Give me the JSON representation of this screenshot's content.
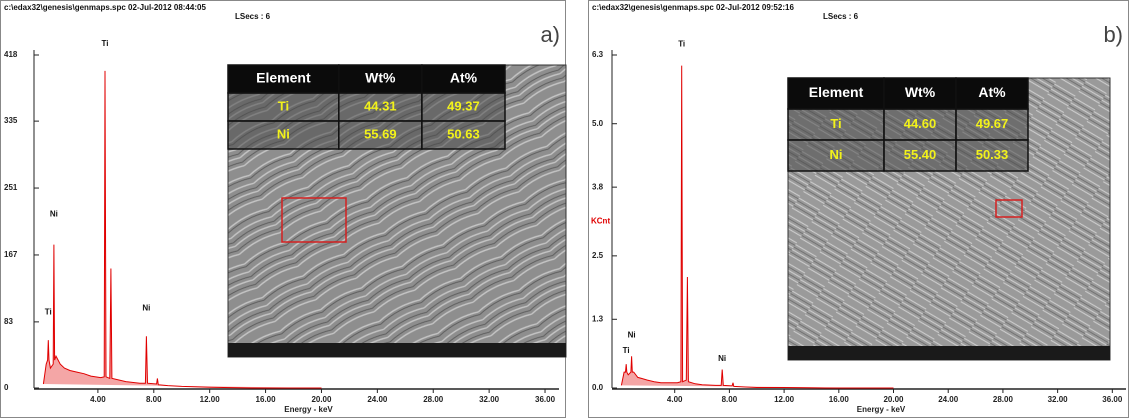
{
  "chart_data": [
    {
      "type": "line",
      "header": "c:\\edax32\\genesis\\genmaps.spc  02-Jul-2012 08:44:05",
      "subheader": "LSecs : 6",
      "panel_label": "a)",
      "xlabel": "Energy - keV",
      "color": "#e00000",
      "xlim": [
        0,
        37
      ],
      "ylim": [
        0,
        418
      ],
      "xticks": [
        {
          "value": 4,
          "label": "4.00"
        },
        {
          "value": 8,
          "label": "8.00"
        },
        {
          "value": 12,
          "label": "12.00"
        },
        {
          "value": 16,
          "label": "16.00"
        },
        {
          "value": 20,
          "label": "20.00"
        },
        {
          "value": 24,
          "label": "24.00"
        },
        {
          "value": 28,
          "label": "28.00"
        },
        {
          "value": 32,
          "label": "32.00"
        },
        {
          "value": 36,
          "label": "36.00"
        }
      ],
      "yticks": [
        0,
        83,
        167,
        251,
        335,
        418
      ],
      "x": [
        0.1,
        0.3,
        0.4,
        0.45,
        0.5,
        0.6,
        0.8,
        0.85,
        0.9,
        1.0,
        1.3,
        1.6,
        2.0,
        2.5,
        3.0,
        3.5,
        4.2,
        4.45,
        4.51,
        4.58,
        4.85,
        4.93,
        5.0,
        5.5,
        6.0,
        7.0,
        7.4,
        7.47,
        7.55,
        8.2,
        8.26,
        8.32,
        9.0,
        10.0,
        12.0,
        15.0,
        20.0
      ],
      "values": [
        5,
        30,
        35,
        60,
        35,
        25,
        30,
        180,
        35,
        40,
        30,
        25,
        22,
        20,
        18,
        15,
        13,
        14,
        398,
        14,
        12,
        150,
        12,
        10,
        8,
        6,
        6,
        65,
        6,
        5,
        12,
        4,
        3,
        2,
        1,
        0,
        0
      ],
      "annotations": [
        {
          "text": "Ti",
          "x": 4.51,
          "y": 432
        },
        {
          "text": "Ni",
          "x": 0.85,
          "y": 218
        },
        {
          "text": "Ti",
          "x": 0.45,
          "y": 95
        },
        {
          "text": "Ni",
          "x": 7.47,
          "y": 100
        }
      ],
      "table": {
        "header": [
          "Element",
          "Wt%",
          "At%"
        ],
        "rows": [
          [
            "Ti",
            "44.31",
            "49.37"
          ],
          [
            "Ni",
            "55.69",
            "50.63"
          ]
        ]
      }
    },
    {
      "type": "line",
      "header": "c:\\edax32\\genesis\\genmaps.spc  02-Jul-2012 09:52:16",
      "subheader": "LSecs : 6",
      "panel_label": "b)",
      "xlabel": "Energy - keV",
      "ylabel": "KCnt",
      "color": "#e00000",
      "xlim": [
        0,
        37
      ],
      "ylim": [
        0,
        6.3
      ],
      "xticks": [
        {
          "value": 4,
          "label": "4.00"
        },
        {
          "value": 8,
          "label": "8.00"
        },
        {
          "value": 12,
          "label": "12.00"
        },
        {
          "value": 16,
          "label": "16.00"
        },
        {
          "value": 20,
          "label": "20.00"
        },
        {
          "value": 24,
          "label": "24.00"
        },
        {
          "value": 28,
          "label": "28.00"
        },
        {
          "value": 32,
          "label": "32.00"
        },
        {
          "value": 36,
          "label": "36.00"
        }
      ],
      "yticks": [
        {
          "value": 0,
          "label": "0.0"
        },
        1.3,
        2.5,
        3.8,
        {
          "value": 5,
          "label": "5.0"
        },
        6.3
      ],
      "x": [
        0.1,
        0.3,
        0.4,
        0.45,
        0.5,
        0.6,
        0.8,
        0.85,
        0.9,
        1.0,
        1.3,
        1.6,
        2.0,
        2.5,
        3.0,
        3.5,
        4.2,
        4.45,
        4.51,
        4.58,
        4.85,
        4.93,
        5.0,
        5.5,
        6.0,
        7.0,
        7.4,
        7.47,
        7.55,
        8.2,
        8.26,
        8.32,
        9.0,
        10.0,
        12.0,
        15.0,
        20.0
      ],
      "values": [
        0.05,
        0.3,
        0.3,
        0.45,
        0.3,
        0.25,
        0.3,
        0.6,
        0.3,
        0.3,
        0.2,
        0.18,
        0.15,
        0.12,
        0.1,
        0.1,
        0.1,
        0.12,
        6.1,
        0.12,
        0.15,
        2.1,
        0.12,
        0.08,
        0.06,
        0.05,
        0.05,
        0.35,
        0.05,
        0.04,
        0.1,
        0.03,
        0.02,
        0.01,
        0.01,
        0,
        0
      ],
      "annotations": [
        {
          "text": "Ti",
          "x": 4.51,
          "y": 6.5
        },
        {
          "text": "Ni",
          "x": 0.85,
          "y": 1.0
        },
        {
          "text": "Ti",
          "x": 0.45,
          "y": 0.7
        },
        {
          "text": "Ni",
          "x": 7.47,
          "y": 0.55
        }
      ],
      "table": {
        "header": [
          "Element",
          "Wt%",
          "At%"
        ],
        "rows": [
          [
            "Ti",
            "44.60",
            "49.67"
          ],
          [
            "Ni",
            "55.40",
            "50.33"
          ]
        ]
      }
    }
  ]
}
